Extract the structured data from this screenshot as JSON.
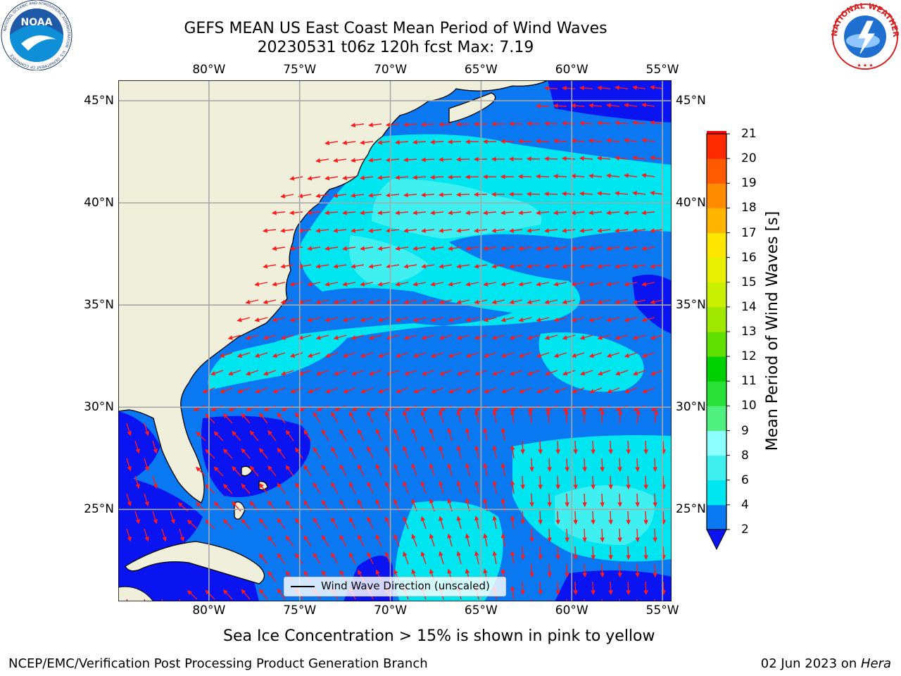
{
  "title": {
    "line1": "GEFS MEAN US East Coast Mean Period of Wind Waves",
    "line2": "20230531 t06z 120h fcst   Max: 7.19"
  },
  "logos": {
    "left": {
      "text": "NOAA",
      "ring_text": "NATIONAL OCEANIC AND ATMOSPHERIC ADMINISTRATION · U.S. DEPARTMENT OF COMMERCE",
      "color": "#1e5aa8"
    },
    "right": {
      "ring_text": "NATIONAL WEATHER SERVICE",
      "color": "#d62020"
    }
  },
  "map": {
    "lon_range": [
      -85,
      -54.5
    ],
    "lat_range": [
      20.5,
      46
    ],
    "lon_ticks": [
      {
        "value": -80,
        "label": "80°W"
      },
      {
        "value": -75,
        "label": "75°W"
      },
      {
        "value": -70,
        "label": "70°W"
      },
      {
        "value": -65,
        "label": "65°W"
      },
      {
        "value": -60,
        "label": "60°W"
      },
      {
        "value": -55,
        "label": "55°W"
      }
    ],
    "lat_ticks": [
      {
        "value": 45,
        "label": "45°N"
      },
      {
        "value": 40,
        "label": "40°N"
      },
      {
        "value": 35,
        "label": "35°N"
      },
      {
        "value": 30,
        "label": "30°N"
      },
      {
        "value": 25,
        "label": "25°N"
      }
    ],
    "grid": true,
    "land_color": "#efefdc",
    "arrow_color": "#ff1a1a",
    "legend_label": "Wind Wave Direction (unscaled)",
    "legend_placement": "bottom-center"
  },
  "colorbar": {
    "title": "Mean Period of Wind Waves [s]",
    "levels": [
      {
        "value": 2,
        "label": "2"
      },
      {
        "value": 4,
        "label": "4"
      },
      {
        "value": 6,
        "label": "6"
      },
      {
        "value": 8,
        "label": "8"
      },
      {
        "value": 9,
        "label": "9"
      },
      {
        "value": 10,
        "label": "10"
      },
      {
        "value": 11,
        "label": "11"
      },
      {
        "value": 12,
        "label": "12"
      },
      {
        "value": 13,
        "label": "13"
      },
      {
        "value": 14,
        "label": "14"
      },
      {
        "value": 15,
        "label": "15"
      },
      {
        "value": 16,
        "label": "16"
      },
      {
        "value": 17,
        "label": "17"
      },
      {
        "value": 18,
        "label": "18"
      },
      {
        "value": 19,
        "label": "19"
      },
      {
        "value": 20,
        "label": "20"
      },
      {
        "value": 21,
        "label": "21"
      }
    ],
    "colors": [
      "#0a78f0",
      "#00e6f0",
      "#40f0f0",
      "#8cffff",
      "#50f080",
      "#28e038",
      "#00d000",
      "#60e000",
      "#a0e800",
      "#c8f000",
      "#e6f000",
      "#ffe600",
      "#ffb400",
      "#ff8c00",
      "#ff5a00",
      "#ff2a00",
      "#ff0000"
    ],
    "under_color": "#0a14f0"
  },
  "subtitle": "Sea Ice Concentration > 15% is shown in pink to yellow",
  "footer": {
    "left": "NCEP/EMC/Verification Post Processing Product Generation Branch",
    "right_date": "02 Jun 2023 on ",
    "right_host": "Hera"
  }
}
